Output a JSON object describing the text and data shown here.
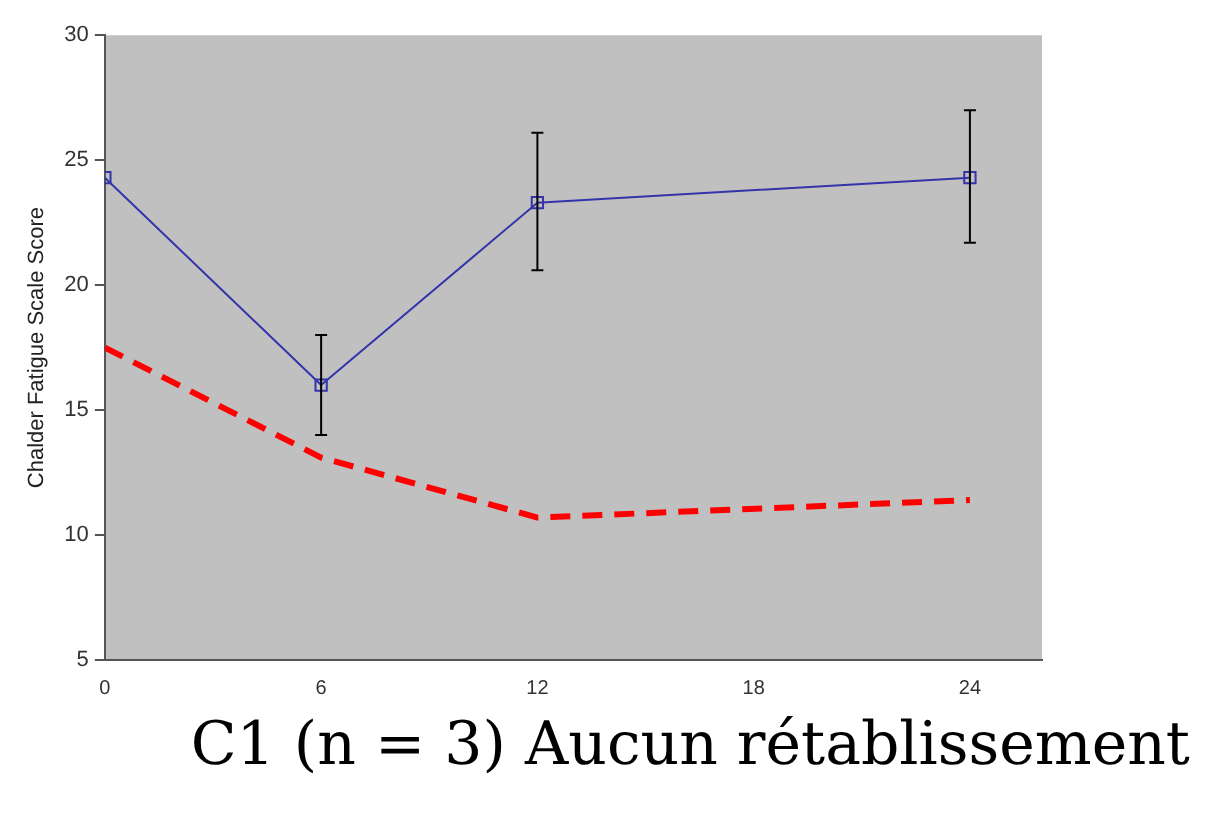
{
  "chart_data": {
    "type": "line",
    "ylabel": "Chalder Fatigue Scale Score",
    "annotations": [
      "C1 (n = 3) Aucun rétablissement"
    ],
    "xlim": [
      0,
      26
    ],
    "xticks": [
      0,
      6,
      12,
      18,
      24
    ],
    "ylim": [
      5,
      30
    ],
    "yticks": [
      5,
      10,
      15,
      20,
      25,
      30
    ],
    "grid": false,
    "legend": false,
    "series": [
      {
        "color": "#3333aa",
        "x": [
          0,
          6,
          12,
          24
        ],
        "values": [
          24.3,
          16.0,
          23.3,
          24.3
        ],
        "marker": "square",
        "line_style": "solid",
        "errors": [
          null,
          [
            14.0,
            18.0
          ],
          [
            20.6,
            26.1
          ],
          [
            21.7,
            27.0
          ]
        ]
      },
      {
        "color": "#ff0000",
        "x": [
          0,
          6,
          12,
          24
        ],
        "values": [
          17.5,
          13.1,
          10.7,
          11.4
        ],
        "marker": "none",
        "line_style": "dashed"
      }
    ]
  }
}
